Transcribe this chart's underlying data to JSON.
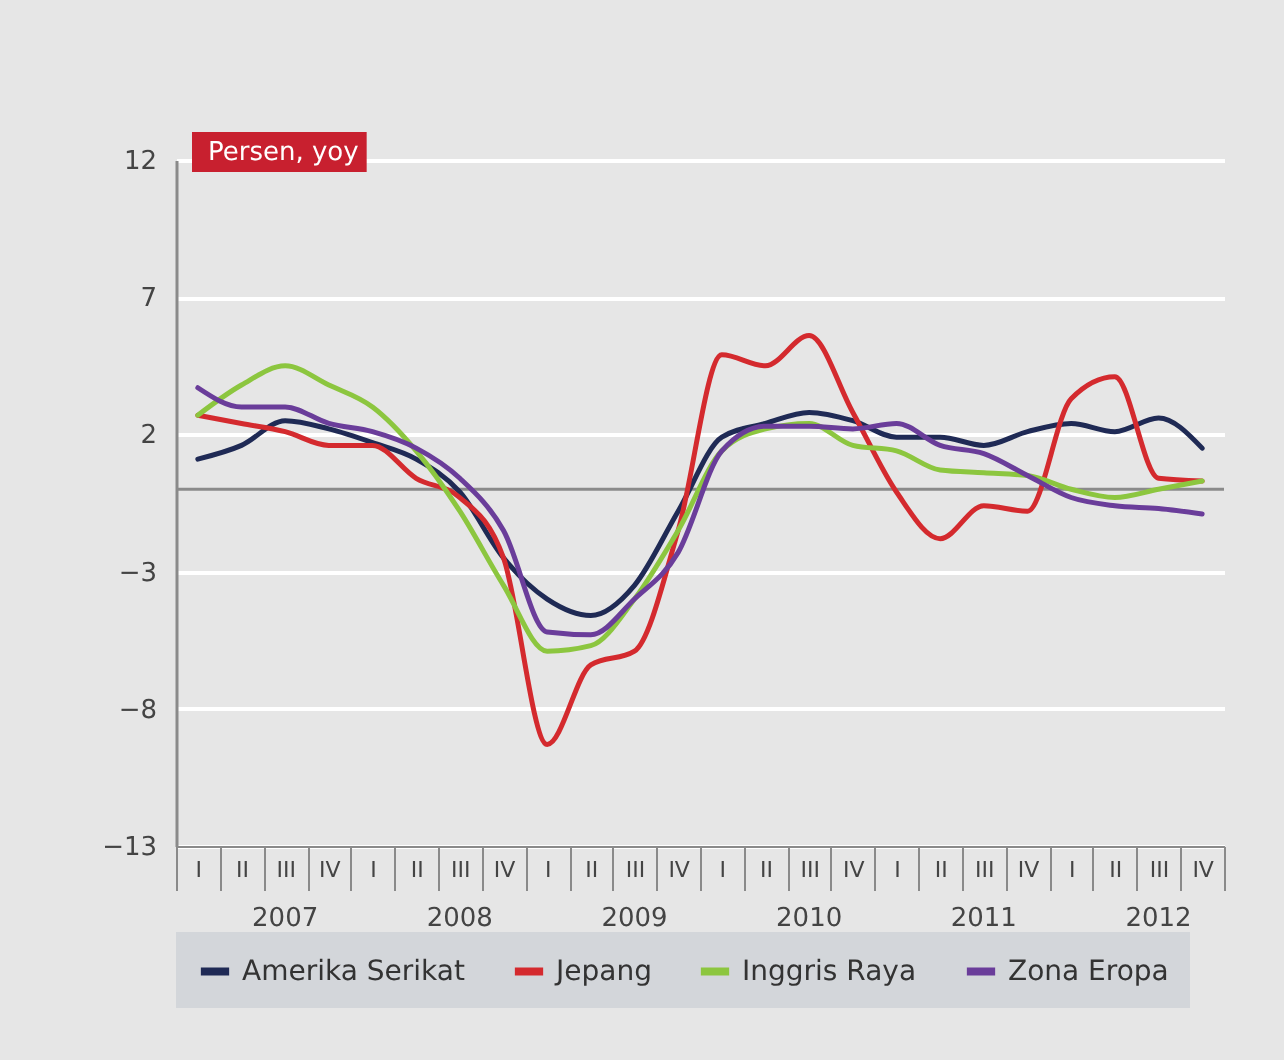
{
  "chart_data": {
    "type": "line",
    "ylabel": "Persen, yoy",
    "categories": [
      "I",
      "II",
      "III",
      "IV",
      "I",
      "II",
      "III",
      "IV",
      "I",
      "II",
      "III",
      "IV",
      "I",
      "II",
      "III",
      "IV",
      "I",
      "II",
      "III",
      "IV",
      "I",
      "II",
      "III",
      "IV"
    ],
    "annotations": [
      "2007",
      "2008",
      "2009",
      "2010",
      "2011",
      "2012"
    ],
    "series": [
      {
        "name": "Amerika Serikat",
        "color": "#1f2a55",
        "values": [
          1.1,
          1.6,
          2.5,
          2.2,
          1.7,
          1.1,
          -0.1,
          -2.5,
          -4.0,
          -4.6,
          -3.5,
          -0.8,
          1.9,
          2.4,
          2.8,
          2.5,
          1.9,
          1.9,
          1.6,
          2.1,
          2.4,
          2.1,
          2.6,
          1.5
        ]
      },
      {
        "name": "Jepang",
        "color": "#d42a2e",
        "values": [
          2.7,
          2.4,
          2.1,
          1.6,
          1.6,
          0.4,
          -0.3,
          -2.5,
          -9.3,
          -6.4,
          -5.9,
          -1.5,
          4.9,
          4.5,
          5.6,
          2.8,
          -0.1,
          -1.8,
          -0.6,
          -0.8,
          3.3,
          4.1,
          0.4,
          0.3
        ]
      },
      {
        "name": "Inggris Raya",
        "color": "#8cc63f",
        "values": [
          2.7,
          3.8,
          4.5,
          3.8,
          3.0,
          1.4,
          -0.8,
          -3.5,
          -5.9,
          -5.7,
          -4.0,
          -1.5,
          1.4,
          2.2,
          2.4,
          1.6,
          1.4,
          0.7,
          0.6,
          0.5,
          0.0,
          -0.3,
          0.0,
          0.3
        ]
      },
      {
        "name": "Zona Eropa",
        "color": "#6a3d9a",
        "values": [
          3.7,
          3.0,
          3.0,
          2.4,
          2.1,
          1.5,
          0.4,
          -1.5,
          -5.2,
          -5.3,
          -4.0,
          -2.3,
          1.4,
          2.3,
          2.3,
          2.2,
          2.4,
          1.6,
          1.3,
          0.5,
          -0.3,
          -0.6,
          -0.7,
          -0.9
        ]
      }
    ],
    "ylim": [
      -13,
      12
    ],
    "yticks": [
      -13,
      -8,
      -3,
      2,
      7,
      12
    ],
    "ref_lines": [
      {
        "axis": "y",
        "value": 0,
        "color": "#8a8a8a"
      }
    ],
    "grid": "y",
    "legend": "bottom",
    "marker": "none",
    "line_style": "solid"
  }
}
